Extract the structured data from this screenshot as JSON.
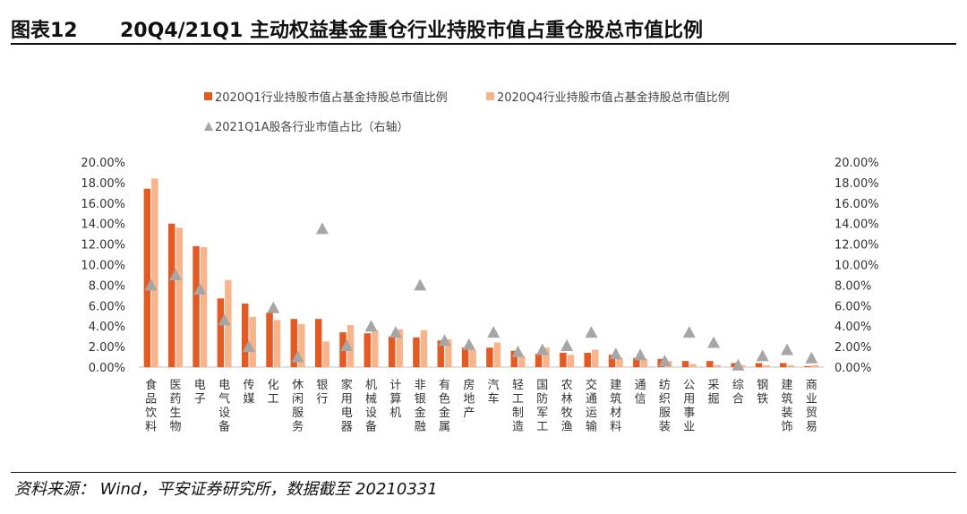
{
  "header": {
    "figure_no": "图表12",
    "title": "20Q4/21Q1 主动权益基金重仓行业持股市值占重仓股总市值比例"
  },
  "footer": {
    "source": "资料来源： Wind，平安证券研究所，数据截至 20210331"
  },
  "colors": {
    "q1_2020": "#e55a23",
    "q4_2020": "#f8b48a",
    "q1_2021": "#a6a6a6"
  },
  "chart_data": {
    "type": "bar",
    "categories": [
      "食品饮料",
      "医药生物",
      "电子",
      "电气设备",
      "传媒",
      "化工",
      "休闲服务",
      "银行",
      "家用电器",
      "机械设备",
      "计算机",
      "非银金融",
      "有色金属",
      "房地产",
      "汽车",
      "轻工制造",
      "国防军工",
      "农林牧渔",
      "交通运输",
      "建筑材料",
      "通信",
      "纺织服装",
      "公用事业",
      "采掘",
      "综合",
      "钢铁",
      "建筑装饰",
      "商业贸易"
    ],
    "series": [
      {
        "name": "2020Q1行业持股市值占基金持股总市值比例",
        "type": "bar",
        "axis": "left",
        "values": [
          17.4,
          14.0,
          11.8,
          6.7,
          6.2,
          5.3,
          4.7,
          4.7,
          3.4,
          3.3,
          3.0,
          2.9,
          2.6,
          1.9,
          1.9,
          1.6,
          1.3,
          1.4,
          1.4,
          1.2,
          0.9,
          0.8,
          0.6,
          0.6,
          0.4,
          0.4,
          0.4,
          0.1
        ]
      },
      {
        "name": "2020Q4行业持股市值占基金持股总市值比例",
        "type": "bar",
        "axis": "left",
        "values": [
          18.4,
          13.6,
          11.7,
          8.5,
          4.9,
          4.6,
          4.2,
          2.5,
          4.1,
          3.6,
          3.7,
          3.6,
          2.7,
          1.7,
          2.4,
          1.1,
          1.9,
          1.2,
          1.7,
          0.9,
          0.8,
          0.6,
          0.3,
          0.2,
          0.2,
          0.2,
          0.2,
          0.2
        ]
      },
      {
        "name": "2021Q1A股各行业市值占比（右轴）",
        "type": "marker",
        "axis": "right",
        "values": [
          8.0,
          9.0,
          7.6,
          4.6,
          2.0,
          5.8,
          1.0,
          13.5,
          2.1,
          4.0,
          3.4,
          8.0,
          2.6,
          2.2,
          3.4,
          1.5,
          1.7,
          2.1,
          3.4,
          1.3,
          1.2,
          0.6,
          3.4,
          2.4,
          0.2,
          1.1,
          1.7,
          0.9
        ]
      }
    ],
    "y_left": {
      "min": 0,
      "max": 20,
      "ticks": [
        "0.00%",
        "2.00%",
        "4.00%",
        "6.00%",
        "8.00%",
        "10.00%",
        "12.00%",
        "14.00%",
        "16.00%",
        "18.00%",
        "20.00%"
      ]
    },
    "y_right": {
      "min": 0,
      "max": 20,
      "ticks": [
        "0.00%",
        "2.00%",
        "4.00%",
        "6.00%",
        "8.00%",
        "10.00%",
        "12.00%",
        "14.00%",
        "16.00%",
        "18.00%",
        "20.00%"
      ]
    },
    "legend_position": "top",
    "grid": false
  }
}
